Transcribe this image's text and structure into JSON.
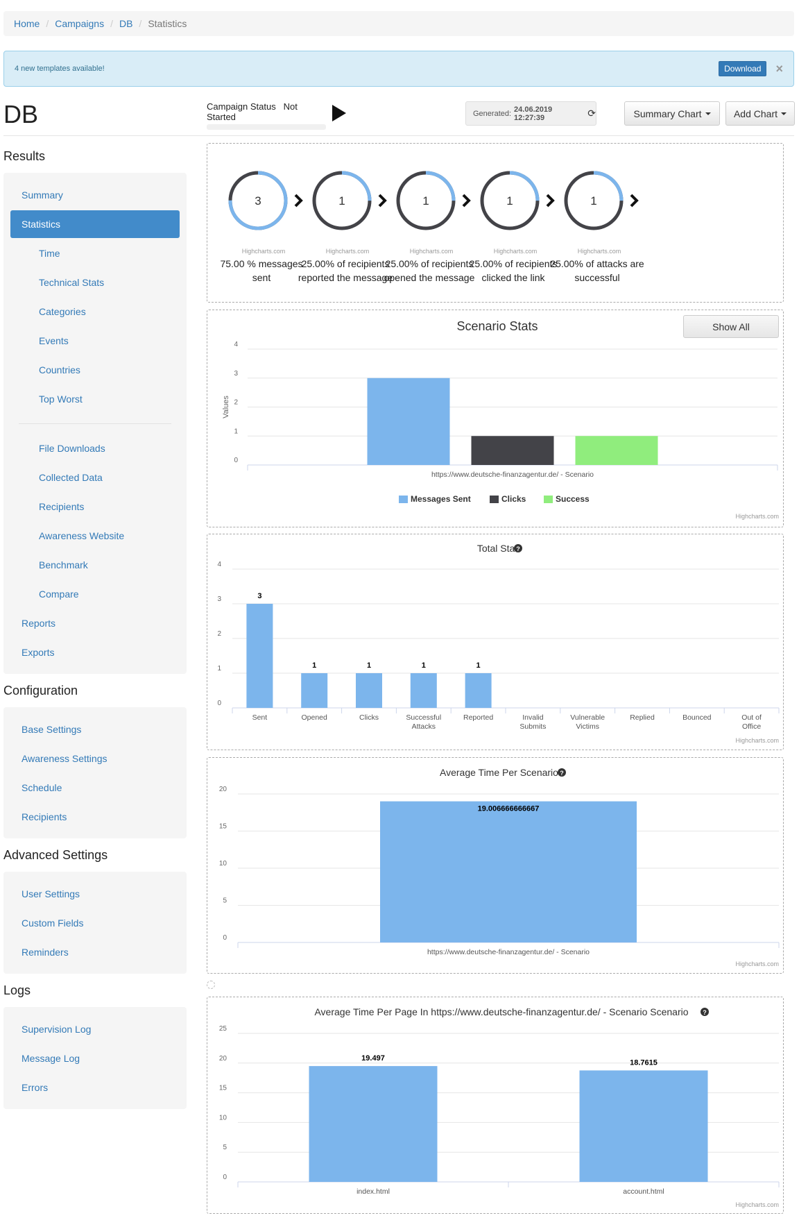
{
  "breadcrumb": [
    "Home",
    "Campaigns",
    "DB",
    "Statistics"
  ],
  "alert": {
    "text": "4 new templates available!",
    "button": "Download",
    "close": "×"
  },
  "page_title": "DB",
  "campaign_status": {
    "label": "Campaign Status",
    "value": "Not Started"
  },
  "generated": {
    "label": "Generated:",
    "value": "24.06.2019 12:27:39"
  },
  "buttons": {
    "summary_chart": "Summary Chart",
    "add_chart": "Add Chart"
  },
  "sidebar": {
    "results": {
      "title": "Results",
      "items": [
        {
          "label": "Summary",
          "level": 0
        },
        {
          "label": "Statistics",
          "level": 0,
          "active": true
        },
        {
          "label": "Time",
          "level": 1
        },
        {
          "label": "Technical Stats",
          "level": 1
        },
        {
          "label": "Categories",
          "level": 1
        },
        {
          "label": "Events",
          "level": 1
        },
        {
          "label": "Countries",
          "level": 1
        },
        {
          "label": "Top Worst",
          "level": 1
        },
        {
          "label": "File Downloads",
          "level": 1,
          "divider_before": true
        },
        {
          "label": "Collected Data",
          "level": 1
        },
        {
          "label": "Recipients",
          "level": 1
        },
        {
          "label": "Awareness Website",
          "level": 1
        },
        {
          "label": "Benchmark",
          "level": 1
        },
        {
          "label": "Compare",
          "level": 1
        },
        {
          "label": "Reports",
          "level": 0
        },
        {
          "label": "Exports",
          "level": 0
        }
      ]
    },
    "configuration": {
      "title": "Configuration",
      "items": [
        "Base Settings",
        "Awareness Settings",
        "Schedule",
        "Recipients"
      ]
    },
    "advanced": {
      "title": "Advanced Settings",
      "items": [
        "User Settings",
        "Custom Fields",
        "Reminders"
      ]
    },
    "logs": {
      "title": "Logs",
      "items": [
        "Supervision Log",
        "Message Log",
        "Errors"
      ]
    }
  },
  "funnel": {
    "credit": "Highcharts.com",
    "steps": [
      {
        "value": "3",
        "fraction": 0.75,
        "caption1": "75.00 % messages",
        "caption2": "sent"
      },
      {
        "value": "1",
        "fraction": 0.25,
        "caption1": "25.00% of recipients",
        "caption2": "reported the message"
      },
      {
        "value": "1",
        "fraction": 0.25,
        "caption1": "25.00% of recipients",
        "caption2": "opened the message"
      },
      {
        "value": "1",
        "fraction": 0.25,
        "caption1": "25.00% of recipients",
        "caption2": "clicked the link"
      },
      {
        "value": "1",
        "fraction": 0.25,
        "caption1": "25.00% of attacks are",
        "caption2": "successful"
      }
    ]
  },
  "colors": {
    "blue": "#7cb5ec",
    "dark": "#434348",
    "green": "#90ed7d",
    "ring_dark": "#434348"
  },
  "chart_data": [
    {
      "type": "bar",
      "title": "Scenario Stats",
      "button": "Show All",
      "ylabel": "Values",
      "ylim": [
        0,
        4
      ],
      "yticks": [
        "0",
        "1",
        "2",
        "3",
        "4"
      ],
      "categories": [
        "https://www.deutsche-finanzagentur.de/ - Scenario"
      ],
      "series": [
        {
          "name": "Messages Sent",
          "values": [
            3
          ],
          "color": "#7cb5ec"
        },
        {
          "name": "Clicks",
          "values": [
            1
          ],
          "color": "#434348"
        },
        {
          "name": "Success",
          "values": [
            1
          ],
          "color": "#90ed7d"
        }
      ],
      "legend": "bottom",
      "grid": true,
      "credit": "Highcharts.com"
    },
    {
      "type": "bar",
      "title": "Total Stat",
      "ylim": [
        0,
        4
      ],
      "yticks": [
        "0",
        "1",
        "2",
        "3",
        "4"
      ],
      "categories": [
        "Sent",
        "Opened",
        "Clicks",
        "Successful Attacks",
        "Reported",
        "Invalid Submits",
        "Vulnerable Victims",
        "Replied",
        "Bounced",
        "Out of Office"
      ],
      "category_lines": [
        [
          "Sent"
        ],
        [
          "Opened"
        ],
        [
          "Clicks"
        ],
        [
          "Successful",
          "Attacks"
        ],
        [
          "Reported"
        ],
        [
          "Invalid",
          "Submits"
        ],
        [
          "Vulnerable",
          "Victims"
        ],
        [
          "Replied"
        ],
        [
          "Bounced"
        ],
        [
          "Out of",
          "Office"
        ]
      ],
      "values": [
        3,
        1,
        1,
        1,
        1,
        null,
        null,
        null,
        null,
        null
      ],
      "data_labels": [
        "3",
        "1",
        "1",
        "1",
        "1",
        "",
        "",
        "",
        "",
        ""
      ],
      "grid": true,
      "credit": "Highcharts.com"
    },
    {
      "type": "bar",
      "title": "Average Time Per Scenarios",
      "ylim": [
        0,
        20
      ],
      "yticks": [
        "0",
        "5",
        "10",
        "15",
        "20"
      ],
      "categories": [
        "https://www.deutsche-finanzagentur.de/ - Scenario"
      ],
      "values": [
        19.006666666667
      ],
      "data_labels": [
        "19.006666666667"
      ],
      "grid": true,
      "credit": "Highcharts.com"
    },
    {
      "type": "bar",
      "title": "Average Time Per Page In https://www.deutsche-finanzagentur.de/ - Scenario Scenario",
      "ylim": [
        0,
        25
      ],
      "yticks": [
        "0",
        "5",
        "10",
        "15",
        "20",
        "25"
      ],
      "categories": [
        "index.html",
        "account.html"
      ],
      "values": [
        19.497,
        18.7615
      ],
      "data_labels": [
        "19.497",
        "18.7615"
      ],
      "grid": true,
      "credit": "Highcharts.com"
    }
  ]
}
